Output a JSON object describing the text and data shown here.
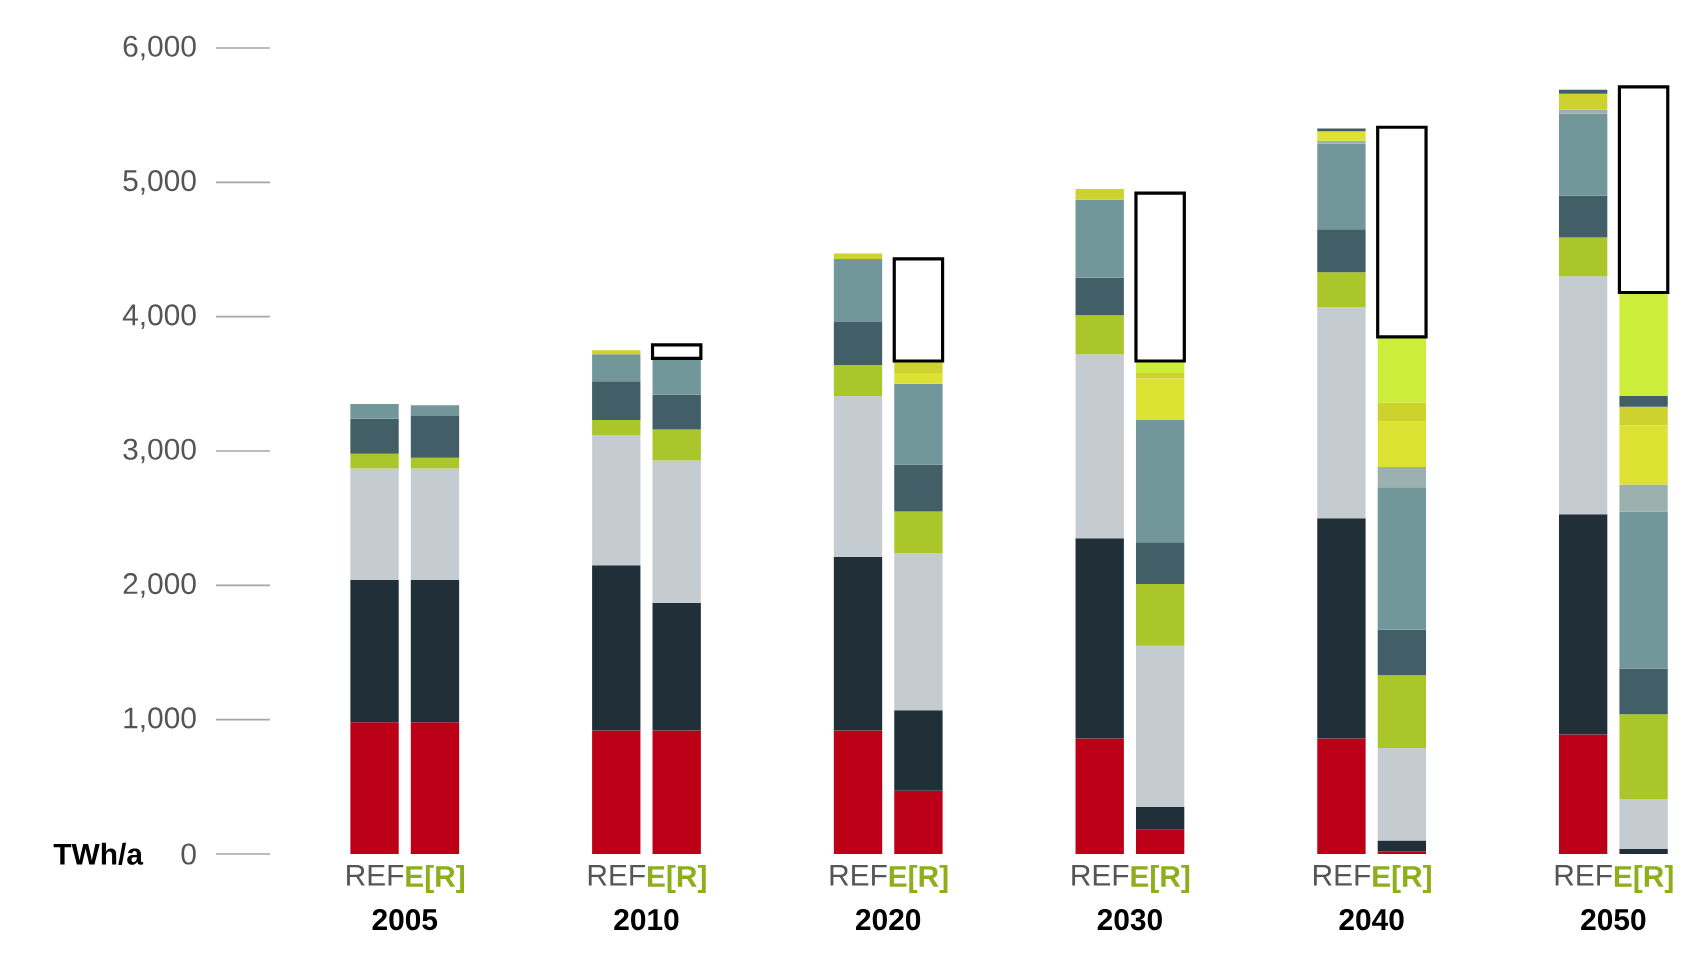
{
  "chart_data": {
    "type": "bar",
    "stacked": true,
    "ylabel": "TWh/a",
    "categories": [
      "REF",
      "E[R]",
      "REF",
      "E[R]",
      "REF",
      "E[R]",
      "REF",
      "E[R]",
      "REF",
      "E[R]",
      "REF",
      "E[R]"
    ],
    "annotations": [
      "2005",
      "2010",
      "2020",
      "2030",
      "2040",
      "2050"
    ],
    "ylim": [
      0,
      6000
    ],
    "yticks": [
      0,
      {
        "value": 1000,
        "label": "1,000"
      },
      {
        "value": 2000,
        "label": "2,000"
      },
      {
        "value": 3000,
        "label": "3,000"
      },
      {
        "value": 4000,
        "label": "4,000"
      },
      {
        "value": 5000,
        "label": "5,000"
      },
      {
        "value": 6000,
        "label": "6,000"
      }
    ],
    "series": [
      {
        "color": "#bb0018",
        "values": [
          980,
          980,
          920,
          920,
          920,
          470,
          860,
          180,
          860,
          20,
          890,
          null
        ]
      },
      {
        "color": "#213038",
        "values": [
          1060,
          1060,
          1230,
          950,
          1290,
          600,
          1490,
          170,
          1640,
          80,
          1640,
          40
        ]
      },
      {
        "color": "#c4ccd2",
        "values": [
          830,
          830,
          970,
          1060,
          1200,
          1170,
          1370,
          1200,
          1570,
          690,
          1770,
          370
        ]
      },
      {
        "color": "#aac62a",
        "values": [
          110,
          80,
          110,
          230,
          230,
          310,
          290,
          460,
          260,
          540,
          290,
          630
        ]
      },
      {
        "color": "#425e66",
        "values": [
          260,
          310,
          290,
          260,
          320,
          350,
          280,
          310,
          320,
          340,
          310,
          340
        ]
      },
      {
        "color": "#72979a",
        "values": [
          110,
          80,
          200,
          270,
          470,
          600,
          580,
          910,
          640,
          1060,
          610,
          1170
        ]
      },
      {
        "color": "#9cb0b0",
        "values": [
          null,
          null,
          null,
          null,
          null,
          null,
          null,
          null,
          20,
          150,
          30,
          200
        ]
      },
      {
        "color": "#dde232",
        "values": [
          null,
          null,
          null,
          null,
          null,
          80,
          null,
          310,
          70,
          340,
          null,
          440
        ]
      },
      {
        "color": "#cdd22e",
        "values": [
          null,
          null,
          30,
          null,
          40,
          90,
          80,
          40,
          null,
          140,
          120,
          140
        ]
      },
      {
        "color": "#425e66",
        "values": [
          null,
          null,
          null,
          null,
          null,
          null,
          null,
          null,
          20,
          null,
          30,
          80
        ]
      },
      {
        "color": "#ccee3a",
        "values": [
          null,
          null,
          null,
          null,
          null,
          null,
          null,
          90,
          null,
          490,
          null,
          770
        ]
      },
      {
        "color": "#ffffff",
        "values": [
          null,
          null,
          null,
          100,
          null,
          760,
          null,
          1250,
          null,
          1560,
          null,
          1530
        ]
      }
    ]
  }
}
